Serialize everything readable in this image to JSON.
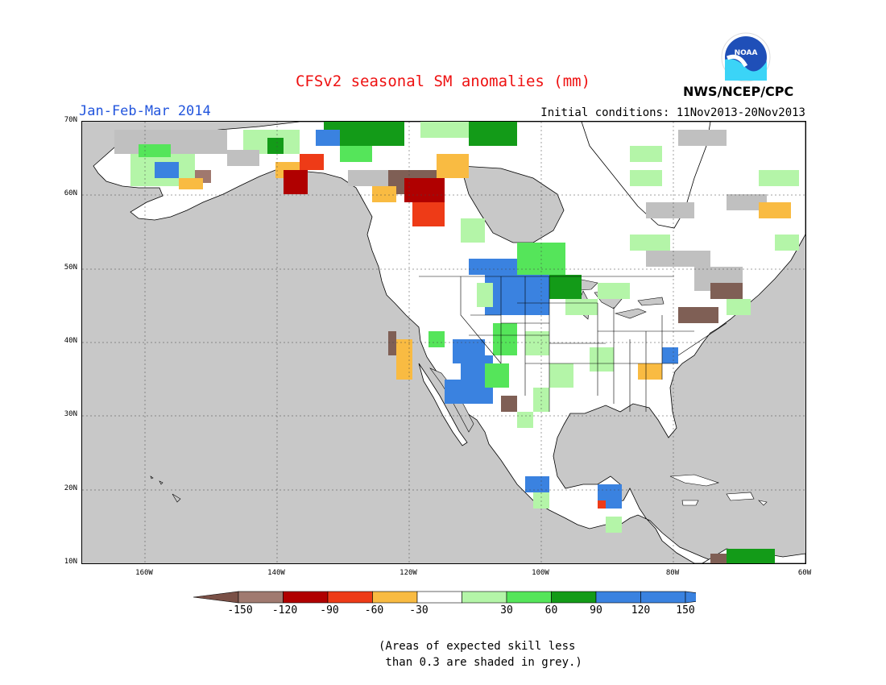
{
  "header": {
    "title": "CFSv2 seasonal SM anomalies (mm)",
    "period": "Jan-Feb-Mar 2014",
    "initial_conditions": "Initial conditions: 11Nov2013-20Nov2013",
    "agency": "NWS/NCEP/CPC",
    "logo_text": "NOAA"
  },
  "map": {
    "projection": "cylindrical",
    "lon_range": [
      -175,
      -60
    ],
    "lat_range": [
      10,
      70
    ],
    "lat_labels": [
      "70N",
      "60N",
      "50N",
      "40N",
      "30N",
      "20N",
      "10N"
    ],
    "lon_labels": [
      "160W",
      "140W",
      "120W",
      "100W",
      "80W",
      "60W"
    ],
    "ocean_color": "#c8c8c8",
    "grey_meaning": "skill < 0.3",
    "colors": {
      "brown": "#7f5f55",
      "dark_brown": "#a0786e",
      "dark_red": "#b00000",
      "red": "#ee3b17",
      "orange": "#f9bb42",
      "white": "#ffffff",
      "light_green": "#b4f5a8",
      "green": "#55e55a",
      "dark_green": "#139b18",
      "blue": "#3a82e0",
      "grey": "#c0c0c0"
    }
  },
  "colorbar": {
    "ticks": [
      "-150",
      "-120",
      "-90",
      "-60",
      "-30",
      "30",
      "60",
      "90",
      "120",
      "150"
    ],
    "colors": [
      "#7a5046",
      "#a07a70",
      "#b00000",
      "#ee3b17",
      "#f9bb42",
      "#ffffff",
      "#b4f5a8",
      "#55e55a",
      "#139b18",
      "#3a82e0",
      "#3a82e0"
    ]
  },
  "footnote": "(Areas of expected skill less\n than 0.3 are shaded in grey.)"
}
